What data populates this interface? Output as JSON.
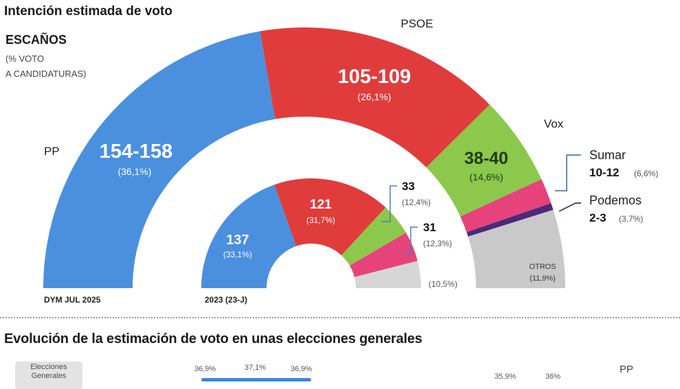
{
  "chart_data": {
    "type": "semicircle-parliament",
    "title": "Intención estimada de voto",
    "legend_heading": "ESCAÑOS",
    "legend_sub": [
      "(% VOTO",
      "A CANDIDATURAS)"
    ],
    "charts": [
      {
        "label": "DYM JUL 2025",
        "total_seats": 350,
        "parties": [
          {
            "name": "PP",
            "seats_label": "154-158",
            "seats": 156,
            "vote_label": "(36,1%)",
            "vote": 36.1,
            "color": "#4a90de"
          },
          {
            "name": "PSOE",
            "seats_label": "105-109",
            "seats": 107,
            "vote_label": "(26,1%)",
            "vote": 26.1,
            "color": "#e03c3c"
          },
          {
            "name": "Vox",
            "seats_label": "38-40",
            "seats": 39,
            "vote_label": "(14,6%)",
            "vote": 14.6,
            "color": "#8cc84b"
          },
          {
            "name": "Sumar",
            "seats_label": "10-12",
            "seats": 11,
            "vote_label": "(6,6%)",
            "vote": 6.6,
            "color": "#e6437a"
          },
          {
            "name": "Podemos",
            "seats_label": "2-3",
            "seats": 3,
            "vote_label": "(3,7%)",
            "vote": 3.7,
            "color": "#4b2a7a"
          },
          {
            "name": "OTROS",
            "seats_label": "",
            "seats": 34,
            "vote_label": "(11,9%)",
            "vote": 11.9,
            "color": "#c9c9c9"
          }
        ]
      },
      {
        "label": "2023 (23-J)",
        "total_seats": 350,
        "parties": [
          {
            "name": "PP",
            "seats_label": "137",
            "seats": 137,
            "vote_label": "(33,1%)",
            "vote": 33.1,
            "color": "#4a90de"
          },
          {
            "name": "PSOE",
            "seats_label": "121",
            "seats": 121,
            "vote_label": "(31,7%)",
            "vote": 31.7,
            "color": "#e03c3c"
          },
          {
            "name": "Vox",
            "seats_label": "33",
            "seats": 33,
            "vote_label": "(12,4%)",
            "vote": 12.4,
            "color": "#8cc84b"
          },
          {
            "name": "Sumar",
            "seats_label": "31",
            "seats": 31,
            "vote_label": "(12,3%)",
            "vote": 12.3,
            "color": "#e6437a"
          },
          {
            "name": "Otros",
            "seats_label": "",
            "seats": 28,
            "vote_label": "(10,5%)",
            "vote": 10.5,
            "color": "#d6d6d6"
          }
        ]
      }
    ]
  },
  "section2": {
    "title": "Evolución de la estimación de voto en unas elecciones generales",
    "badge_line1": "Elecciones",
    "badge_line2": "Generales",
    "values": [
      "36,9%",
      "37,1%",
      "36,9%",
      "35,9%",
      "36%"
    ],
    "party": "PP",
    "color": "#3f86d8"
  }
}
